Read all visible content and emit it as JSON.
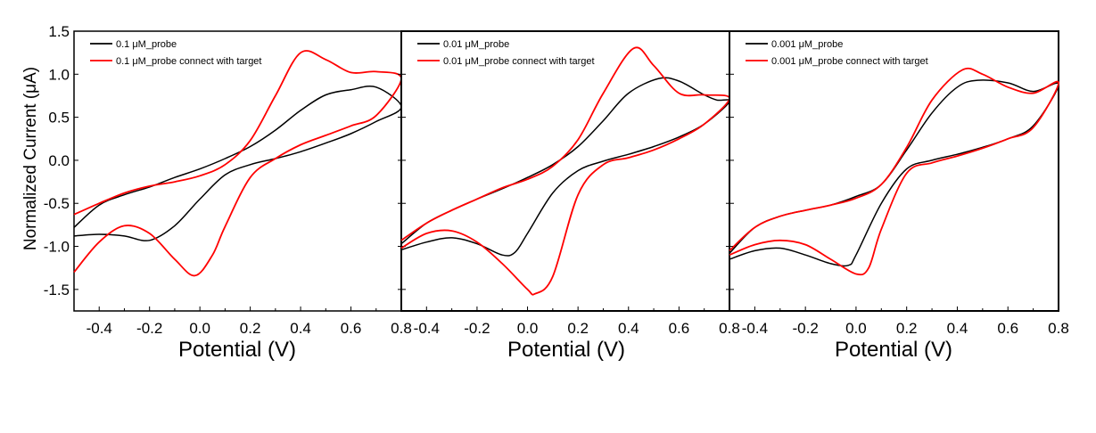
{
  "figure": {
    "ylabel": "Normalized Current (μA)",
    "xlabel": "Potential (V)"
  },
  "chart_data": [
    {
      "type": "line",
      "xlabel": "Potential (V)",
      "ylabel": "Normalized Current (μA)",
      "xlim": [
        -0.5,
        0.8
      ],
      "ylim": [
        -1.75,
        1.5
      ],
      "xticks": [
        "-0.4",
        "-0.2",
        "0.0",
        "0.2",
        "0.4",
        "0.6",
        "0.8"
      ],
      "yticks": [
        "1.5",
        "1.0",
        "0.5",
        "0.0",
        "-0.5",
        "-1.0",
        "-1.5"
      ],
      "legend_position": "top-left",
      "series": [
        {
          "name": "0.1 μM_probe",
          "color": "#000000",
          "x": [
            -0.5,
            -0.4,
            -0.3,
            -0.2,
            -0.1,
            0.0,
            0.1,
            0.2,
            0.3,
            0.4,
            0.5,
            0.6,
            0.7,
            0.8,
            0.7,
            0.6,
            0.5,
            0.4,
            0.3,
            0.2,
            0.1,
            0.0,
            -0.1,
            -0.2,
            -0.3,
            -0.4,
            -0.5
          ],
          "y": [
            -0.88,
            -0.86,
            -0.88,
            -0.93,
            -0.76,
            -0.45,
            -0.17,
            -0.05,
            0.02,
            0.1,
            0.2,
            0.31,
            0.45,
            0.62,
            0.85,
            0.82,
            0.76,
            0.58,
            0.35,
            0.16,
            0.02,
            -0.1,
            -0.2,
            -0.31,
            -0.4,
            -0.52,
            -0.78
          ]
        },
        {
          "name": "0.1 μM_probe connect with target",
          "color": "#ff0000",
          "x": [
            -0.5,
            -0.4,
            -0.3,
            -0.2,
            -0.1,
            -0.02,
            0.05,
            0.1,
            0.2,
            0.3,
            0.4,
            0.5,
            0.6,
            0.7,
            0.8,
            0.7,
            0.6,
            0.5,
            0.4,
            0.3,
            0.2,
            0.1,
            0.0,
            -0.1,
            -0.2,
            -0.3,
            -0.4,
            -0.5
          ],
          "y": [
            -1.3,
            -0.95,
            -0.76,
            -0.85,
            -1.15,
            -1.34,
            -1.1,
            -0.77,
            -0.2,
            0.02,
            0.18,
            0.29,
            0.4,
            0.52,
            0.95,
            1.03,
            1.02,
            1.17,
            1.25,
            0.75,
            0.23,
            -0.05,
            -0.18,
            -0.25,
            -0.3,
            -0.38,
            -0.5,
            -0.63
          ]
        }
      ]
    },
    {
      "type": "line",
      "xlabel": "Potential (V)",
      "ylabel": "Normalized Current (μA)",
      "xlim": [
        -0.5,
        0.8
      ],
      "ylim": [
        -1.75,
        1.5
      ],
      "xticks": [
        "-0.4",
        "-0.2",
        "0.0",
        "0.2",
        "0.4",
        "0.6",
        "0.8"
      ],
      "yticks": [
        "1.5",
        "1.0",
        "0.5",
        "0.0",
        "-0.5",
        "-1.0",
        "-1.5"
      ],
      "legend_position": "top-left",
      "series": [
        {
          "name": "0.01 μM_probe",
          "color": "#000000",
          "x": [
            -0.5,
            -0.4,
            -0.3,
            -0.2,
            -0.1,
            -0.05,
            0.0,
            0.1,
            0.2,
            0.3,
            0.4,
            0.5,
            0.6,
            0.7,
            0.8,
            0.75,
            0.7,
            0.6,
            0.52,
            0.4,
            0.3,
            0.2,
            0.1,
            0.0,
            -0.1,
            -0.2,
            -0.3,
            -0.4,
            -0.5
          ],
          "y": [
            -1.04,
            -0.95,
            -0.9,
            -0.97,
            -1.1,
            -1.07,
            -0.85,
            -0.38,
            -0.12,
            -0.01,
            0.07,
            0.16,
            0.27,
            0.42,
            0.68,
            0.7,
            0.76,
            0.92,
            0.95,
            0.78,
            0.46,
            0.16,
            -0.05,
            -0.2,
            -0.33,
            -0.45,
            -0.58,
            -0.73,
            -0.97
          ]
        },
        {
          "name": "0.01 μM_probe connect with target",
          "color": "#ff0000",
          "x": [
            -0.5,
            -0.4,
            -0.3,
            -0.2,
            -0.1,
            0.0,
            0.03,
            0.1,
            0.2,
            0.3,
            0.4,
            0.5,
            0.6,
            0.7,
            0.8,
            0.7,
            0.6,
            0.5,
            0.42,
            0.3,
            0.2,
            0.1,
            0.0,
            -0.1,
            -0.2,
            -0.3,
            -0.4,
            -0.5
          ],
          "y": [
            -1.02,
            -0.85,
            -0.82,
            -0.95,
            -1.2,
            -1.5,
            -1.55,
            -1.35,
            -0.4,
            -0.05,
            0.03,
            0.12,
            0.25,
            0.42,
            0.72,
            0.76,
            0.78,
            1.1,
            1.3,
            0.78,
            0.24,
            -0.07,
            -0.22,
            -0.32,
            -0.45,
            -0.58,
            -0.73,
            -0.93
          ]
        }
      ]
    },
    {
      "type": "line",
      "xlabel": "Potential (V)",
      "ylabel": "Normalized Current (μA)",
      "xlim": [
        -0.5,
        0.8
      ],
      "ylim": [
        -1.75,
        1.5
      ],
      "xticks": [
        "-0.4",
        "-0.2",
        "0.0",
        "0.2",
        "0.4",
        "0.6",
        "0.8"
      ],
      "yticks": [
        "1.5",
        "1.0",
        "0.5",
        "0.0",
        "-0.5",
        "-1.0",
        "-1.5"
      ],
      "legend_position": "top-left",
      "series": [
        {
          "name": "0.001 μM_probe",
          "color": "#000000",
          "x": [
            -0.5,
            -0.4,
            -0.3,
            -0.2,
            -0.1,
            -0.03,
            0.0,
            0.1,
            0.2,
            0.3,
            0.4,
            0.5,
            0.6,
            0.7,
            0.8,
            0.7,
            0.6,
            0.48,
            0.4,
            0.3,
            0.2,
            0.1,
            0.0,
            -0.1,
            -0.2,
            -0.3,
            -0.4,
            -0.5
          ],
          "y": [
            -1.15,
            -1.05,
            -1.02,
            -1.1,
            -1.2,
            -1.22,
            -1.1,
            -0.5,
            -0.1,
            0.0,
            0.07,
            0.15,
            0.25,
            0.4,
            0.88,
            0.8,
            0.9,
            0.93,
            0.85,
            0.55,
            0.12,
            -0.28,
            -0.42,
            -0.52,
            -0.58,
            -0.65,
            -0.78,
            -1.08
          ]
        },
        {
          "name": "0.001 μM_probe connect with target",
          "color": "#ff0000",
          "x": [
            -0.5,
            -0.4,
            -0.3,
            -0.2,
            -0.1,
            0.0,
            0.05,
            0.1,
            0.2,
            0.3,
            0.4,
            0.5,
            0.6,
            0.7,
            0.8,
            0.7,
            0.6,
            0.5,
            0.42,
            0.3,
            0.2,
            0.1,
            0.0,
            -0.1,
            -0.2,
            -0.3,
            -0.4,
            -0.5
          ],
          "y": [
            -1.1,
            -0.98,
            -0.93,
            -0.98,
            -1.15,
            -1.32,
            -1.25,
            -0.8,
            -0.15,
            -0.03,
            0.05,
            0.14,
            0.25,
            0.38,
            0.9,
            0.78,
            0.85,
            1.0,
            1.05,
            0.7,
            0.15,
            -0.28,
            -0.44,
            -0.52,
            -0.58,
            -0.65,
            -0.78,
            -1.05
          ]
        }
      ]
    }
  ]
}
